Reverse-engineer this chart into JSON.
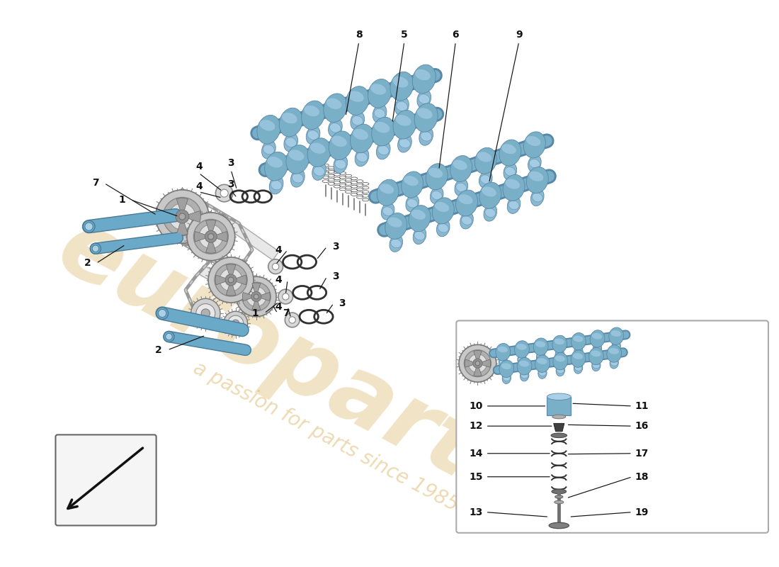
{
  "bg": "#ffffff",
  "watermark_main": "europarts",
  "watermark_sub": "a passion for parts since 1985",
  "wm_color": "#d4a84b",
  "wm_alpha": 0.32,
  "cam_color": "#7aafc8",
  "cam_dark": "#5888a8",
  "cam_light": "#aad0e8",
  "tappet_color": "#8ab8d0",
  "chain_color": "#c0c0c0",
  "bolt_color": "#6aaac8",
  "phaser_outer": "#c8c8c8",
  "phaser_mid": "#b0b0b0",
  "phaser_inner": "#e0e0e0",
  "phaser_hub": "#909090",
  "oring_color": "#303030",
  "inset_border": "#aaaaaa",
  "label_size": 10,
  "label_color": "#111111"
}
